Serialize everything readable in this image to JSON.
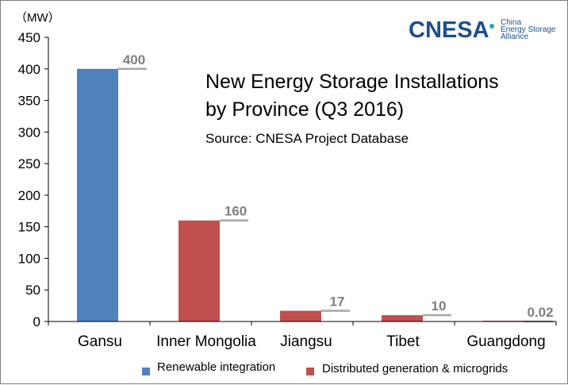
{
  "chart_data": {
    "type": "bar",
    "title": "New Energy Storage Installations",
    "title_line2": "by Province (Q3 2016)",
    "subtitle": "Source: CNESA Project Database",
    "unit_label": "（MW）",
    "categories": [
      "Gansu",
      "Inner Mongolia",
      "Jiangsu",
      "Tibet",
      "Guangdong"
    ],
    "values": [
      400,
      160,
      17,
      10,
      0.02
    ],
    "value_labels": [
      "400",
      "160",
      "17",
      "10",
      "0.02"
    ],
    "bar_series": [
      "renewable",
      "distributed",
      "distributed",
      "distributed",
      "distributed"
    ],
    "series": [
      {
        "key": "renewable",
        "name": "Renewable integration",
        "color": "#4f81bd"
      },
      {
        "key": "distributed",
        "name": "Distributed generation & microgrids",
        "color": "#c0504d"
      }
    ],
    "ylim": [
      0,
      450
    ],
    "yticks": [
      "0",
      "50",
      "100",
      "150",
      "200",
      "250",
      "300",
      "350",
      "400",
      "450"
    ],
    "grid": false,
    "legend_position": "bottom"
  },
  "logo": {
    "main": "CNESA",
    "sub1": "China",
    "sub2": "Energy Storage",
    "sub3": "Alliance",
    "color": "#1d4f91",
    "accent": "#2aa8a0"
  }
}
